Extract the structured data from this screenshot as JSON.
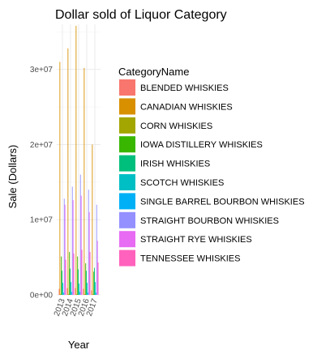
{
  "chart_data": {
    "type": "bar",
    "title": "Dollar sold of Liquor Category",
    "xlabel": "Year",
    "ylabel": "Sale (Dollars)",
    "categories": [
      "2013",
      "2014",
      "2015",
      "2016",
      "2017"
    ],
    "ylim": [
      0,
      36000000
    ],
    "yticks": [
      0,
      10000000,
      20000000,
      30000000
    ],
    "ytick_labels": [
      "0e+00",
      "1e+07",
      "2e+07",
      "3e+07"
    ],
    "grid": true,
    "legend": {
      "title": "CategoryName",
      "position": "right"
    },
    "series": [
      {
        "name": "BLENDED WHISKIES",
        "color": "#F8766D",
        "values": [
          800000,
          900000,
          900000,
          800000,
          600000
        ]
      },
      {
        "name": "CANADIAN WHISKIES",
        "color": "#D89000",
        "values": [
          31000000,
          32800000,
          35800000,
          30200000,
          20000000
        ]
      },
      {
        "name": "CORN WHISKIES",
        "color": "#A3A500",
        "values": [
          100000,
          100000,
          100000,
          100000,
          100000
        ]
      },
      {
        "name": "IOWA DISTILLERY WHISKIES",
        "color": "#39B600",
        "values": [
          5100000,
          5700000,
          5100000,
          4200000,
          3100000
        ]
      },
      {
        "name": "IRISH WHISKIES",
        "color": "#00BF7D",
        "values": [
          3200000,
          3500000,
          3400000,
          3200000,
          3600000
        ]
      },
      {
        "name": "SCOTCH WHISKIES",
        "color": "#00BFC4",
        "values": [
          1600000,
          1700000,
          1500000,
          1600000,
          1700000
        ]
      },
      {
        "name": "SINGLE BARREL BOURBON WHISKIES",
        "color": "#00B0F6",
        "values": [
          300000,
          400000,
          400000,
          300000,
          300000
        ]
      },
      {
        "name": "STRAIGHT BOURBON WHISKIES",
        "color": "#9590FF",
        "values": [
          12800000,
          14400000,
          16000000,
          14000000,
          12000000
        ]
      },
      {
        "name": "STRAIGHT RYE WHISKIES",
        "color": "#E76BF3",
        "values": [
          12000000,
          12600000,
          13200000,
          11000000,
          7200000
        ]
      },
      {
        "name": "TENNESSEE WHISKIES",
        "color": "#FF62BC",
        "values": [
          4700000,
          5500000,
          6000000,
          5700000,
          4300000
        ]
      }
    ]
  }
}
